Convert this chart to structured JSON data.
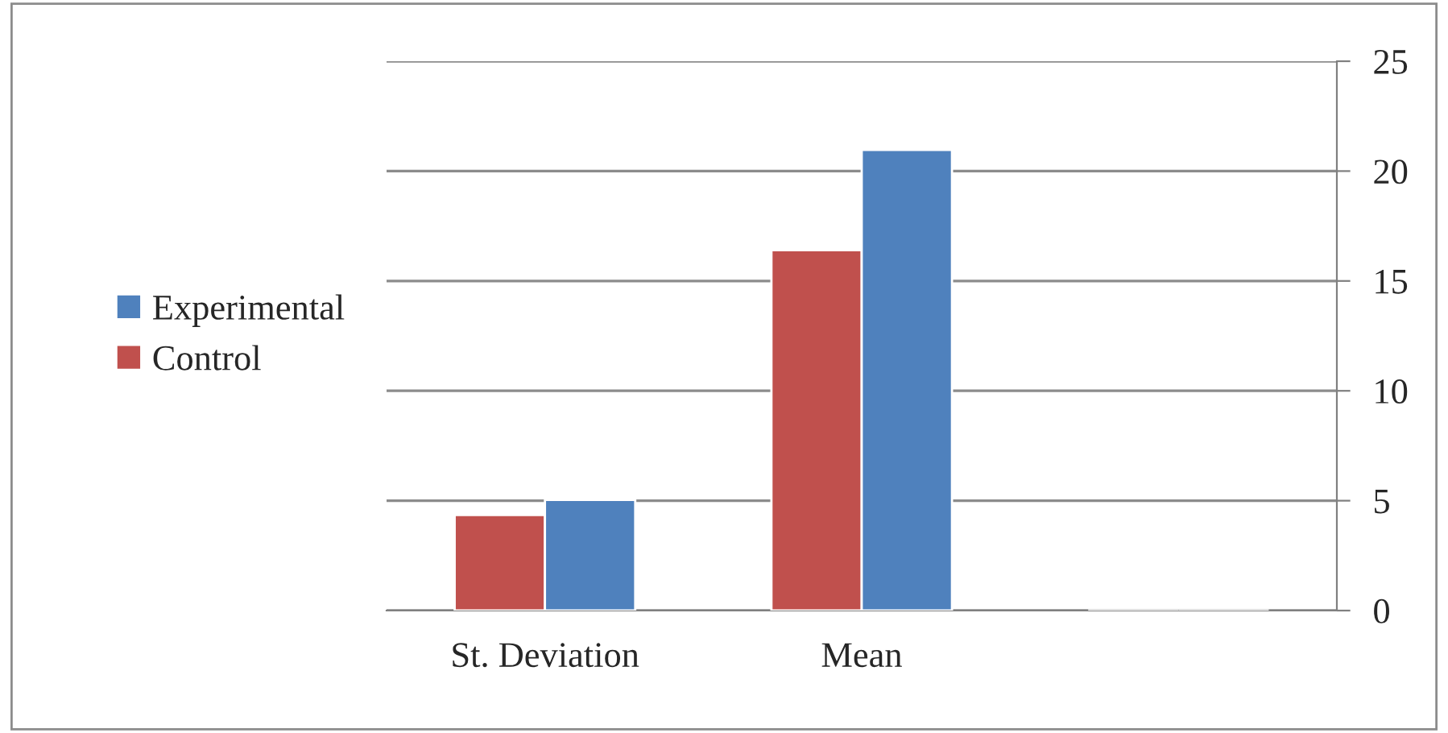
{
  "chart_data": {
    "type": "bar",
    "categories": [
      "St. Deviation",
      "Mean",
      null
    ],
    "series": [
      {
        "name": "Control",
        "color": "#c0504d",
        "values": [
          4.35,
          16.4,
          null
        ]
      },
      {
        "name": "Experimental",
        "color": "#4f81bd",
        "values": [
          5.04,
          20.96,
          null
        ]
      }
    ],
    "ylim": [
      0,
      25
    ],
    "yticks": [
      0,
      5,
      10,
      15,
      20,
      25
    ],
    "grid": "y",
    "legend": "left"
  }
}
